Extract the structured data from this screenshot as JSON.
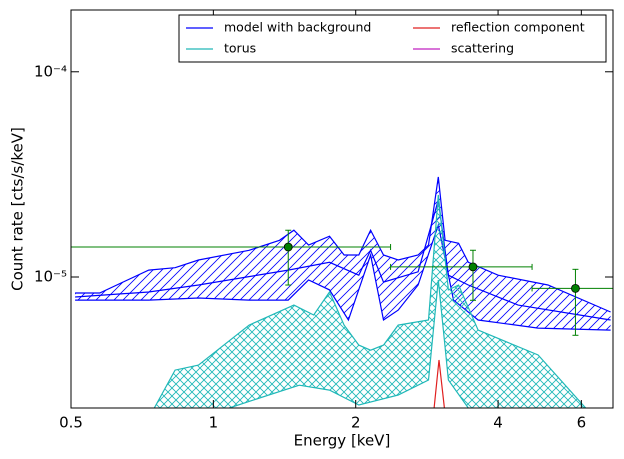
{
  "chart_data": {
    "type": "line",
    "x_label": "Energy [keV]",
    "y_label": "Count rate [cts/s/keV]",
    "xscale": "log",
    "yscale": "log",
    "xlim": [
      0.5,
      7
    ],
    "ylim": [
      2.3e-06,
      0.0002
    ],
    "xticks": [
      0.5,
      1,
      2,
      4,
      6
    ],
    "yticks": [
      {
        "value": 1e-05,
        "label": "10⁻⁵"
      },
      {
        "value": 0.0001,
        "label": "10⁻⁴"
      }
    ],
    "legend": "upper right",
    "legend_columns": 2,
    "series": [
      {
        "name": "model with background",
        "color": "#0000ff",
        "hatch": "diagonal",
        "curves": [
          {
            "x": [
              0.51,
              0.575,
              0.73,
              0.83,
              0.93,
              1.19,
              1.38,
              1.48,
              1.59,
              1.76,
              1.89,
              2.03,
              2.15,
              2.29,
              2.46,
              2.71,
              2.85,
              2.99,
              3.09,
              3.3,
              3.46,
              4.0,
              5.1,
              6.92
            ],
            "values": [
              8.36e-06,
              8.36e-06,
              1.08e-05,
              1.11e-05,
              1.21e-05,
              1.35e-05,
              1.51e-05,
              1.69e-05,
              1.43e-05,
              1.58e-05,
              1.28e-05,
              1.28e-05,
              1.69e-05,
              1.28e-05,
              1.21e-05,
              1.28e-05,
              1.43e-05,
              3.07e-05,
              1.51e-05,
              1.46e-05,
              1.18e-05,
              1.02e-05,
              9.14e-06,
              6.75e-06
            ]
          },
          {
            "x": [
              0.51,
              0.73,
              0.93,
              1.19,
              1.44,
              1.59,
              1.76,
              1.93,
              2.15,
              2.29,
              2.46,
              2.71,
              2.99,
              3.22,
              3.63,
              4.86,
              6.92
            ],
            "values": [
              7.72e-06,
              7.72e-06,
              7.9e-06,
              7.72e-06,
              7.72e-06,
              9.67e-06,
              8.65e-06,
              6.17e-06,
              1.28e-05,
              6.17e-06,
              6.9e-06,
              9.14e-06,
              1.79e-05,
              7.72e-06,
              6.17e-06,
              5.64e-06,
              5.51e-06
            ]
          },
          {
            "x": [
              0.51,
              0.73,
              0.93,
              1.44,
              1.76,
              2.03,
              2.15,
              2.29,
              2.71,
              2.99,
              3.14,
              3.46,
              4.41,
              6.92
            ],
            "values": [
              7.99e-06,
              8.45e-06,
              9.14e-06,
              1.08e-05,
              1.18e-05,
              1.02e-05,
              1.35e-05,
              9.45e-06,
              1.06e-05,
              2.37e-05,
              1.02e-05,
              9.14e-06,
              7.3e-06,
              6.17e-06
            ]
          }
        ]
      },
      {
        "name": "torus",
        "color": "#20b8b8",
        "hatch": "cross",
        "curves": [
          {
            "x": [
              0.75,
              0.83,
              0.93,
              1.19,
              1.48,
              1.63,
              1.76,
              1.89,
              2.03,
              2.15,
              2.29,
              2.46,
              2.85,
              2.99,
              3.14,
              3.3,
              3.63,
              4.86,
              6.13
            ],
            "values": [
              2.3e-06,
              3.52e-06,
              3.72e-06,
              5.83e-06,
              7.3e-06,
              6.53e-06,
              8.45e-06,
              5.83e-06,
              4.66e-06,
              4.4e-06,
              4.66e-06,
              5.83e-06,
              6.17e-06,
              2.51e-05,
              8.65e-06,
              9.14e-06,
              5.51e-06,
              4.17e-06,
              2.3e-06
            ]
          },
          {
            "x": [
              1.08,
              1.31,
              1.52,
              1.76,
              2.03,
              2.46,
              2.85,
              2.99,
              3.14,
              3.46
            ],
            "values": [
              2.3e-06,
              2.66e-06,
              2.97e-06,
              2.81e-06,
              2.38e-06,
              2.66e-06,
              3.15e-06,
              9.67e-06,
              3.15e-06,
              2.3e-06
            ]
          }
        ]
      },
      {
        "name": "reflection component",
        "color": "#e02020",
        "curves": [
          {
            "x": [
              2.93,
              3.0,
              3.08
            ],
            "values": [
              2.3e-06,
              3.94e-06,
              2.3e-06
            ]
          }
        ]
      },
      {
        "name": "scattering",
        "color": "#c020c0",
        "curves": []
      }
    ],
    "points": {
      "color": "#008000",
      "x": [
        1.44,
        3.54,
        5.83
      ],
      "values": [
        1.4e-05,
        1.12e-05,
        8.8e-06
      ],
      "x_low": [
        0.5,
        2.37,
        4.72
      ],
      "x_high": [
        2.37,
        4.72,
        7.0
      ],
      "y_low": [
        9.14e-06,
        7.7e-06,
        5.2e-06
      ],
      "y_high": [
        1.69e-05,
        1.35e-05,
        1.09e-05
      ]
    }
  }
}
